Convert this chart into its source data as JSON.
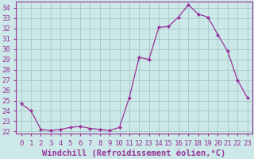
{
  "xlabel": "Windchill (Refroidissement éolien,°C)",
  "hours": [
    0,
    1,
    2,
    3,
    4,
    5,
    6,
    7,
    8,
    9,
    10,
    11,
    12,
    13,
    14,
    15,
    16,
    17,
    18,
    19,
    20,
    21,
    22,
    23
  ],
  "values": [
    24.7,
    24.0,
    22.2,
    22.1,
    22.2,
    22.4,
    22.5,
    22.3,
    22.2,
    22.1,
    22.4,
    25.3,
    29.2,
    29.0,
    32.1,
    32.2,
    33.1,
    34.3,
    33.4,
    33.1,
    31.4,
    29.8,
    27.0,
    25.3
  ],
  "line_color": "#993399",
  "marker": "D",
  "marker_size": 2.0,
  "bg_color": "#cce8e8",
  "grid_color": "#aacccc",
  "ylim": [
    21.8,
    34.6
  ],
  "yticks": [
    22,
    23,
    24,
    25,
    26,
    27,
    28,
    29,
    30,
    31,
    32,
    33,
    34
  ],
  "xlim": [
    -0.5,
    23.5
  ],
  "tick_label_fontsize": 6.5,
  "xlabel_fontsize": 7.5,
  "text_color": "#993399",
  "spine_color": "#993399"
}
